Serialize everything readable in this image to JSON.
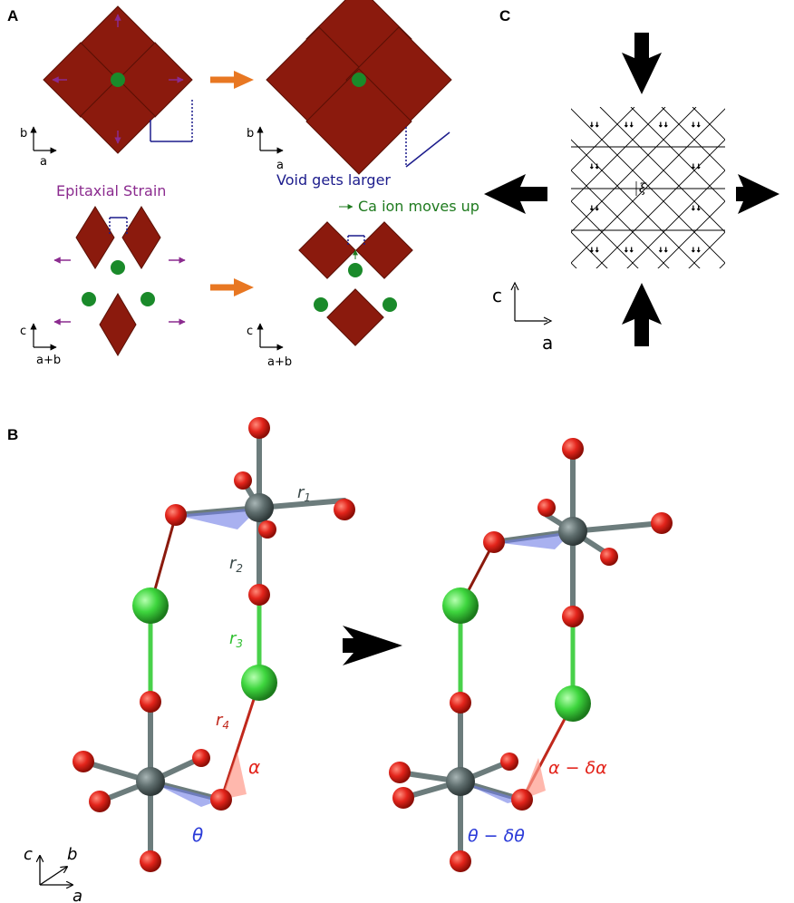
{
  "panels": {
    "a": {
      "label": "A",
      "caption_strain": "Epitaxial Strain",
      "caption_void": "Void gets larger",
      "caption_ca": "Ca ion moves up",
      "axes_top": {
        "v": "b",
        "h": "a"
      },
      "axes_bottom": {
        "v": "c",
        "h": "a+b"
      }
    },
    "b": {
      "label": "B",
      "r1": "r",
      "r1_sub": "1",
      "r2": "r",
      "r2_sub": "2",
      "r3": "r",
      "r3_sub": "3",
      "r4": "r",
      "r4_sub": "4",
      "alpha": "α",
      "theta": "θ",
      "alpha_after": "α − δα",
      "theta_after": "θ − δθ",
      "axes": {
        "c": "c",
        "b": "b",
        "a": "a"
      }
    },
    "c": {
      "label": "C",
      "xi": "ξ",
      "axes": {
        "v": "c",
        "h": "a"
      }
    }
  },
  "colors": {
    "octahedron": "#8b1a0d",
    "ca_ion": "#1a8a2a",
    "strain_arrow": "#8b2b8f",
    "process_arrow": "#e87722",
    "void": "#1c1c8c",
    "oxygen": "#e3241b",
    "calcium_sphere": "#3ed63e",
    "metal_sphere": "#5f6e6e"
  }
}
